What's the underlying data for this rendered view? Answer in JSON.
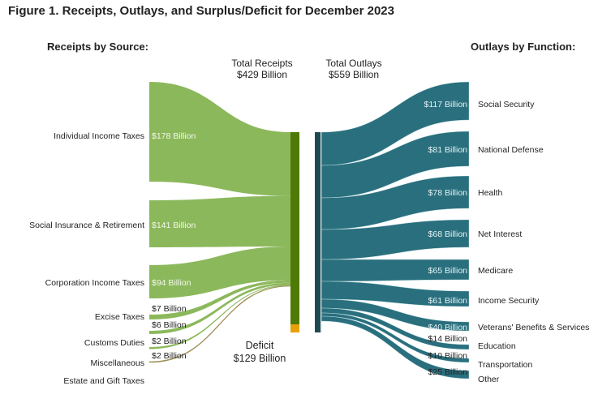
{
  "chart_data": {
    "type": "sankey",
    "title": "Figure 1. Receipts, Outlays, and Surplus/Deficit for December 2023",
    "receipts_header": "Receipts by Source:",
    "outlays_header": "Outlays by Function:",
    "total_receipts": {
      "label": "Total Receipts",
      "value_label": "$429 Billion",
      "value": 429
    },
    "total_outlays": {
      "label": "Total Outlays",
      "value_label": "$559 Billion",
      "value": 559
    },
    "deficit": {
      "label": "Deficit",
      "value_label": "$129 Billion",
      "value": 129
    },
    "receipts": [
      {
        "name": "Individual Income Taxes",
        "value": 178,
        "value_label": "$178 Billion"
      },
      {
        "name": "Social Insurance & Retirement",
        "value": 141,
        "value_label": "$141 Billion"
      },
      {
        "name": "Corporation Income Taxes",
        "value": 94,
        "value_label": "$94 Billion"
      },
      {
        "name": "Excise Taxes",
        "value": 7,
        "value_label": "$7 Billion"
      },
      {
        "name": "Customs Duties",
        "value": 6,
        "value_label": "$6 Billion"
      },
      {
        "name": "Miscellaneous",
        "value": 2,
        "value_label": "$2 Billion"
      },
      {
        "name": "Estate and Gift Taxes",
        "value": 2,
        "value_label": "$2 Billion"
      }
    ],
    "outlays": [
      {
        "name": "Social Security",
        "value": 117,
        "value_label": "$117 Billion"
      },
      {
        "name": "National Defense",
        "value": 81,
        "value_label": "$81 Billion"
      },
      {
        "name": "Health",
        "value": 78,
        "value_label": "$78 Billion"
      },
      {
        "name": "Net Interest",
        "value": 68,
        "value_label": "$68 Billion"
      },
      {
        "name": "Medicare",
        "value": 65,
        "value_label": "$65 Billion"
      },
      {
        "name": "Income Security",
        "value": 61,
        "value_label": "$61 Billion"
      },
      {
        "name": "Veterans' Benefits & Services",
        "value": 40,
        "value_label": "$40 Billion"
      },
      {
        "name": "Education",
        "value": 14,
        "value_label": "$14 Billion"
      },
      {
        "name": "Transportation",
        "value": 10,
        "value_label": "$10 Billion"
      },
      {
        "name": "Other",
        "value": 25,
        "value_label": "$25 Billion"
      }
    ],
    "colors": {
      "receipts": "#8cb85c",
      "receipts_node": "#4e7a05",
      "deficit": "#e8a007",
      "outlays": "#2a6f7d",
      "outlays_node": "#1f4a52"
    }
  }
}
